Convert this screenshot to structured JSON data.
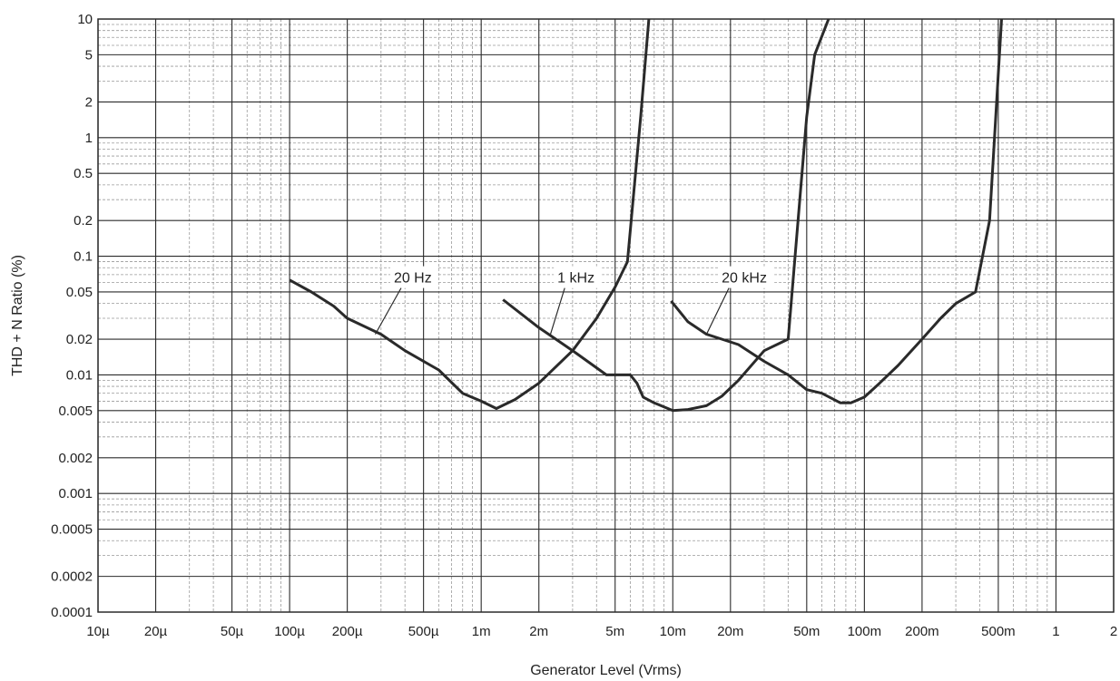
{
  "chart_data": {
    "type": "line",
    "title": "",
    "xlabel": "Generator Level (Vrms)",
    "ylabel": "THD + N Ratio (%)",
    "xscale": "log",
    "yscale": "log",
    "xlim": [
      1e-05,
      2
    ],
    "ylim": [
      0.0001,
      10
    ],
    "grid": true,
    "legend": "none",
    "x_ticks": [
      {
        "value": 1e-05,
        "label": "10µ"
      },
      {
        "value": 2e-05,
        "label": "20µ"
      },
      {
        "value": 5e-05,
        "label": "50µ"
      },
      {
        "value": 0.0001,
        "label": "100µ"
      },
      {
        "value": 0.0002,
        "label": "200µ"
      },
      {
        "value": 0.0005,
        "label": "500µ"
      },
      {
        "value": 0.001,
        "label": "1m"
      },
      {
        "value": 0.002,
        "label": "2m"
      },
      {
        "value": 0.005,
        "label": "5m"
      },
      {
        "value": 0.01,
        "label": "10m"
      },
      {
        "value": 0.02,
        "label": "20m"
      },
      {
        "value": 0.05,
        "label": "50m"
      },
      {
        "value": 0.1,
        "label": "100m"
      },
      {
        "value": 0.2,
        "label": "200m"
      },
      {
        "value": 0.5,
        "label": "500m"
      },
      {
        "value": 1,
        "label": "1"
      },
      {
        "value": 2,
        "label": "2"
      }
    ],
    "y_ticks": [
      {
        "value": 10,
        "label": "10"
      },
      {
        "value": 5,
        "label": "5"
      },
      {
        "value": 2,
        "label": "2"
      },
      {
        "value": 1,
        "label": "1"
      },
      {
        "value": 0.5,
        "label": "0.5"
      },
      {
        "value": 0.2,
        "label": "0.2"
      },
      {
        "value": 0.1,
        "label": "0.1"
      },
      {
        "value": 0.05,
        "label": "0.05"
      },
      {
        "value": 0.02,
        "label": "0.02"
      },
      {
        "value": 0.01,
        "label": "0.01"
      },
      {
        "value": 0.005,
        "label": "0.005"
      },
      {
        "value": 0.002,
        "label": "0.002"
      },
      {
        "value": 0.001,
        "label": "0.001"
      },
      {
        "value": 0.0005,
        "label": "0.0005"
      },
      {
        "value": 0.0002,
        "label": "0.0002"
      },
      {
        "value": 0.0001,
        "label": "0.0001"
      }
    ],
    "series": [
      {
        "name": "20 Hz",
        "points": [
          [
            0.0001,
            0.063
          ],
          [
            0.00013,
            0.05
          ],
          [
            0.00017,
            0.038
          ],
          [
            0.0002,
            0.03
          ],
          [
            0.0003,
            0.022
          ],
          [
            0.0004,
            0.016
          ],
          [
            0.0006,
            0.011
          ],
          [
            0.0008,
            0.007
          ],
          [
            0.001,
            0.006
          ],
          [
            0.0012,
            0.0052
          ],
          [
            0.0015,
            0.0062
          ],
          [
            0.002,
            0.0085
          ],
          [
            0.003,
            0.016
          ],
          [
            0.004,
            0.03
          ],
          [
            0.005,
            0.055
          ],
          [
            0.0058,
            0.09
          ],
          [
            0.0068,
            1.5
          ],
          [
            0.0075,
            10
          ]
        ]
      },
      {
        "name": "1 kHz",
        "points": [
          [
            0.0013,
            0.043
          ],
          [
            0.002,
            0.025
          ],
          [
            0.003,
            0.016
          ],
          [
            0.0045,
            0.01
          ],
          [
            0.0055,
            0.01
          ],
          [
            0.006,
            0.01
          ],
          [
            0.0065,
            0.0085
          ],
          [
            0.007,
            0.0065
          ],
          [
            0.008,
            0.0058
          ],
          [
            0.01,
            0.005
          ],
          [
            0.012,
            0.0051
          ],
          [
            0.015,
            0.0055
          ],
          [
            0.018,
            0.0066
          ],
          [
            0.022,
            0.009
          ],
          [
            0.03,
            0.016
          ],
          [
            0.04,
            0.02
          ],
          [
            0.05,
            1.5
          ],
          [
            0.055,
            5
          ],
          [
            0.065,
            10
          ]
        ]
      },
      {
        "name": "20 kHz",
        "points": [
          [
            0.0098,
            0.042
          ],
          [
            0.012,
            0.028
          ],
          [
            0.015,
            0.022
          ],
          [
            0.018,
            0.02
          ],
          [
            0.022,
            0.018
          ],
          [
            0.03,
            0.013
          ],
          [
            0.04,
            0.01
          ],
          [
            0.05,
            0.0075
          ],
          [
            0.06,
            0.007
          ],
          [
            0.075,
            0.0058
          ],
          [
            0.085,
            0.0058
          ],
          [
            0.1,
            0.0065
          ],
          [
            0.12,
            0.0085
          ],
          [
            0.15,
            0.012
          ],
          [
            0.2,
            0.02
          ],
          [
            0.25,
            0.03
          ],
          [
            0.3,
            0.04
          ],
          [
            0.38,
            0.05
          ],
          [
            0.45,
            0.2
          ],
          [
            0.52,
            10
          ]
        ]
      }
    ],
    "annotations": [
      {
        "text": "20 Hz",
        "x": 0.00035,
        "y": 0.06,
        "target_x": 0.00028,
        "target_y": 0.022
      },
      {
        "text": "1 kHz",
        "x": 0.0025,
        "y": 0.06,
        "target_x": 0.0023,
        "target_y": 0.022
      },
      {
        "text": "20 kHz",
        "x": 0.018,
        "y": 0.06,
        "target_x": 0.015,
        "target_y": 0.022
      }
    ]
  }
}
